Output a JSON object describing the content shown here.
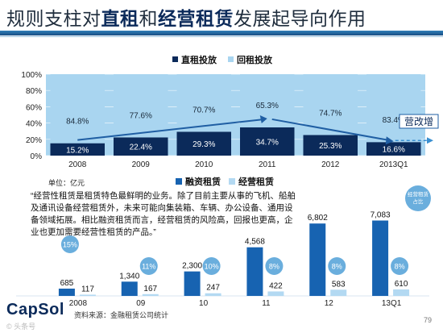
{
  "title": {
    "prefix": "规则支柱对",
    "em1": "直租",
    "mid": "和",
    "em2": "经营租赁",
    "suffix": "发展起导向作用"
  },
  "colors": {
    "direct": "#0b2a5a",
    "leaseback": "#a9d5f0",
    "financing": "#1763b1",
    "operating": "#b3d9f2",
    "trend": "#1f5ea3",
    "arrow_dashed": "#3a8fd0"
  },
  "chart_data": [
    {
      "type": "bar",
      "stacked": true,
      "percent": true,
      "categories": [
        "2008",
        "2009",
        "2010",
        "2011",
        "2012",
        "2013Q1"
      ],
      "series": [
        {
          "name": "直租投放",
          "values": [
            15.2,
            22.4,
            29.3,
            34.7,
            25.3,
            16.6
          ],
          "labels": [
            "15.2%",
            "22.4%",
            "29.3%",
            "34.7%",
            "25.3%",
            "16.6%"
          ]
        },
        {
          "name": "回租投放",
          "values": [
            84.8,
            77.6,
            70.7,
            65.3,
            74.7,
            83.4
          ],
          "labels": [
            "84.8%",
            "77.6%",
            "70.7%",
            "65.3%",
            "74.7%",
            "83.4%"
          ]
        }
      ],
      "ylim": [
        0,
        100
      ],
      "yticks": [
        "0%",
        "20%",
        "40%",
        "60%",
        "80%",
        "100%"
      ],
      "grid": true,
      "legend": "top",
      "annotation": "营改增"
    },
    {
      "type": "bar",
      "unit": "单位：亿元",
      "categories": [
        "2008",
        "09",
        "10",
        "11",
        "12",
        "13Q1"
      ],
      "series": [
        {
          "name": "融资租赁",
          "values": [
            685,
            1340,
            2300,
            4568,
            6802,
            7083
          ],
          "labels": [
            "685",
            "1,340",
            "2,300",
            "4,568",
            "6,802",
            "7,083"
          ]
        },
        {
          "name": "经营租赁",
          "values": [
            117,
            167,
            247,
            422,
            583,
            610
          ],
          "labels": [
            "117",
            "167",
            "247",
            "422",
            "583",
            "610"
          ]
        }
      ],
      "ratio_badges": [
        "15%",
        "11%",
        "10%",
        "8%",
        "8%",
        "8%"
      ],
      "ylim": [
        0,
        7500
      ],
      "legend": "top"
    }
  ],
  "quote": "“经营性租赁是租赁特色最鲜明的业务。除了目前主要从事的飞机、船舶及通讯设备经营租赁外，未来可能向集装箱、车辆、办公设备、通用设备领域拓展。相比融资租赁而言，经营租赁的风险高，回报也更高，企业也更加需要经营性租赁的产品。”",
  "side_badge": "经营租赁占比",
  "footer": {
    "logo": "CapSol",
    "source": "资料来源：金融租赁公司统计",
    "page": "79",
    "watermark": "© 头条号"
  }
}
